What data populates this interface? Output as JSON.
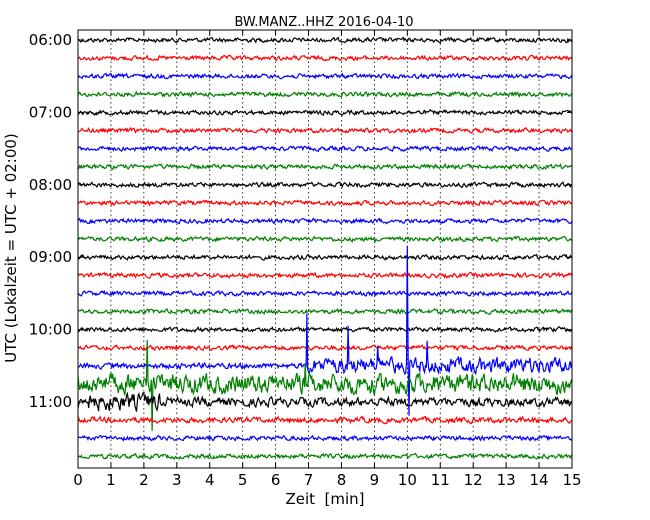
{
  "chart_data": {
    "type": "line",
    "title": "BW.MANZ..HHZ 2016-04-10",
    "xlabel": "Zeit  [min]",
    "ylabel": "UTC (Lokalzeit = UTC + 02:00)",
    "xlim": [
      0,
      15
    ],
    "x_ticks": [
      "0",
      "1",
      "2",
      "3",
      "4",
      "5",
      "6",
      "7",
      "8",
      "9",
      "10",
      "11",
      "12",
      "13",
      "14",
      "15"
    ],
    "y_tick_labels": [
      "06:00",
      "07:00",
      "08:00",
      "09:00",
      "10:00",
      "11:00"
    ],
    "grid": "vertical-dotted",
    "trace_interval_min": 15,
    "trace_colors": [
      "#000000",
      "#ff0000",
      "#0000ff",
      "#008000"
    ],
    "traces": [
      {
        "start": "06:00",
        "amp": 2
      },
      {
        "start": "06:15",
        "amp": 2
      },
      {
        "start": "06:30",
        "amp": 2
      },
      {
        "start": "06:45",
        "amp": 2
      },
      {
        "start": "07:00",
        "amp": 2
      },
      {
        "start": "07:15",
        "amp": 2
      },
      {
        "start": "07:30",
        "amp": 2
      },
      {
        "start": "07:45",
        "amp": 2
      },
      {
        "start": "08:00",
        "amp": 2
      },
      {
        "start": "08:15",
        "amp": 2
      },
      {
        "start": "08:30",
        "amp": 2
      },
      {
        "start": "08:45",
        "amp": 2
      },
      {
        "start": "09:00",
        "amp": 2
      },
      {
        "start": "09:15",
        "amp": 2
      },
      {
        "start": "09:30",
        "amp": 2
      },
      {
        "start": "09:45",
        "amp": 2
      },
      {
        "start": "10:00",
        "amp": 2
      },
      {
        "start": "10:15",
        "amp": 2
      },
      {
        "start": "10:30",
        "amp": 2.5,
        "segments": [
          [
            6.9,
            15,
            7
          ]
        ],
        "spikes": [
          [
            6.95,
            -52
          ],
          [
            8.2,
            -40
          ],
          [
            10.0,
            -120
          ],
          [
            10.05,
            50
          ],
          [
            10.6,
            -25
          ],
          [
            9.1,
            -20
          ]
        ]
      },
      {
        "start": "10:45",
        "amp": 2.5,
        "segments": [
          [
            0,
            15,
            9
          ]
        ],
        "spikes": [
          [
            2.1,
            -44
          ],
          [
            2.25,
            47
          ],
          [
            6.9,
            -20
          ]
        ]
      },
      {
        "start": "11:00",
        "amp": 2.5,
        "segments": [
          [
            0,
            2.5,
            8
          ],
          [
            2.5,
            15,
            4
          ]
        ]
      },
      {
        "start": "11:15",
        "amp": 2.5
      },
      {
        "start": "11:30",
        "amp": 2
      },
      {
        "start": "11:45",
        "amp": 2
      }
    ]
  }
}
